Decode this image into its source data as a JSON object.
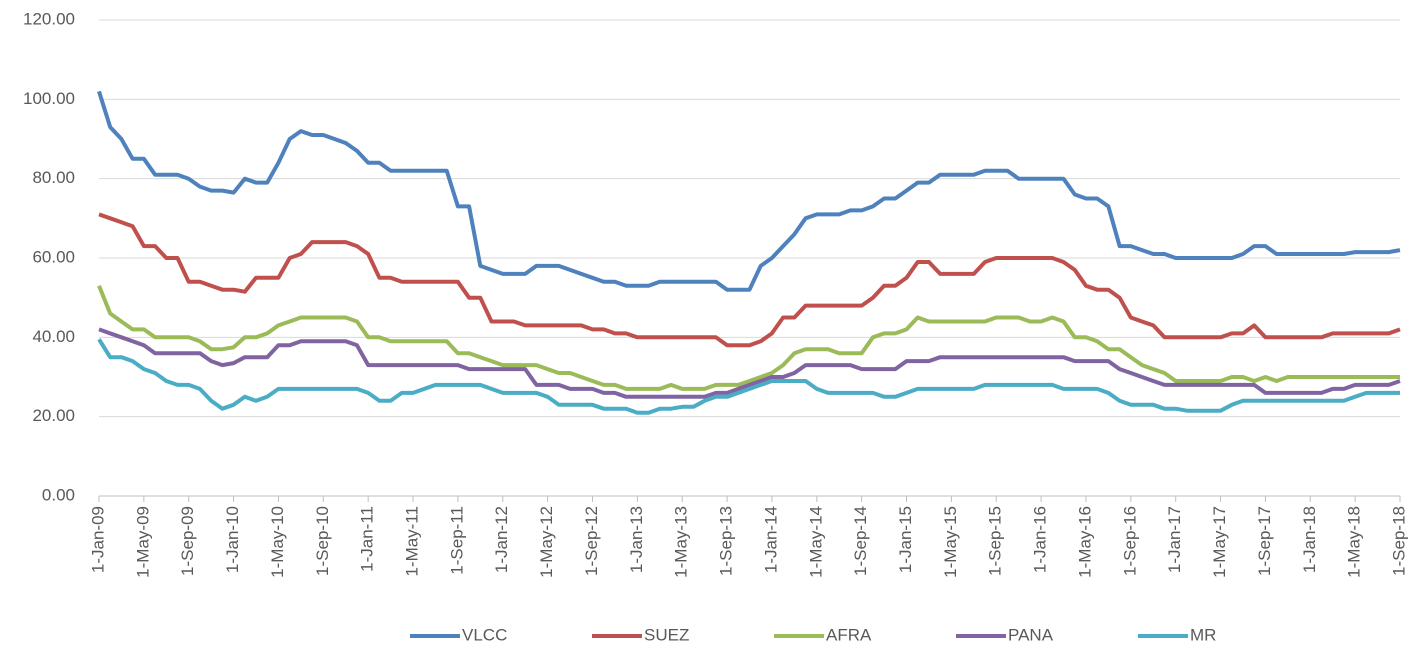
{
  "chart_data": {
    "type": "line",
    "x": [
      "1-Jan-09",
      "1-Feb-09",
      "1-Mar-09",
      "1-Apr-09",
      "1-May-09",
      "1-Jun-09",
      "1-Jul-09",
      "1-Aug-09",
      "1-Sep-09",
      "1-Oct-09",
      "1-Nov-09",
      "1-Dec-09",
      "1-Jan-10",
      "1-Feb-10",
      "1-Mar-10",
      "1-Apr-10",
      "1-May-10",
      "1-Jun-10",
      "1-Jul-10",
      "1-Aug-10",
      "1-Sep-10",
      "1-Oct-10",
      "1-Nov-10",
      "1-Dec-10",
      "1-Jan-11",
      "1-Feb-11",
      "1-Mar-11",
      "1-Apr-11",
      "1-May-11",
      "1-Jun-11",
      "1-Jul-11",
      "1-Aug-11",
      "1-Sep-11",
      "1-Oct-11",
      "1-Nov-11",
      "1-Dec-11",
      "1-Jan-12",
      "1-Feb-12",
      "1-Mar-12",
      "1-Apr-12",
      "1-May-12",
      "1-Jun-12",
      "1-Jul-12",
      "1-Aug-12",
      "1-Sep-12",
      "1-Oct-12",
      "1-Nov-12",
      "1-Dec-12",
      "1-Jan-13",
      "1-Feb-13",
      "1-Mar-13",
      "1-Apr-13",
      "1-May-13",
      "1-Jun-13",
      "1-Jul-13",
      "1-Aug-13",
      "1-Sep-13",
      "1-Oct-13",
      "1-Nov-13",
      "1-Dec-13",
      "1-Jan-14",
      "1-Feb-14",
      "1-Mar-14",
      "1-Apr-14",
      "1-May-14",
      "1-Jun-14",
      "1-Jul-14",
      "1-Aug-14",
      "1-Sep-14",
      "1-Oct-14",
      "1-Nov-14",
      "1-Dec-14",
      "1-Jan-15",
      "1-Feb-15",
      "1-Mar-15",
      "1-Apr-15",
      "1-May-15",
      "1-Jun-15",
      "1-Jul-15",
      "1-Aug-15",
      "1-Sep-15",
      "1-Oct-15",
      "1-Nov-15",
      "1-Dec-15",
      "1-Jan-16",
      "1-Feb-16",
      "1-Mar-16",
      "1-Apr-16",
      "1-May-16",
      "1-Jun-16",
      "1-Jul-16",
      "1-Aug-16",
      "1-Sep-16",
      "1-Oct-16",
      "1-Nov-16",
      "1-Dec-16",
      "1-Jan-17",
      "1-Feb-17",
      "1-Mar-17",
      "1-Apr-17",
      "1-May-17",
      "1-Jun-17",
      "1-Jul-17",
      "1-Aug-17",
      "1-Sep-17",
      "1-Oct-17",
      "1-Nov-17",
      "1-Dec-17",
      "1-Jan-18",
      "1-Feb-18",
      "1-Mar-18",
      "1-Apr-18",
      "1-May-18",
      "1-Jun-18",
      "1-Jul-18",
      "1-Aug-18",
      "1-Sep-18"
    ],
    "series": [
      {
        "name": "VLCC",
        "color": "#4f81bd",
        "values": [
          102,
          93,
          90,
          85,
          85,
          81,
          81,
          81,
          80,
          78,
          77,
          77,
          76.5,
          80,
          79,
          79,
          84,
          90,
          92,
          91,
          91,
          90,
          89,
          87,
          84,
          84,
          82,
          82,
          82,
          82,
          82,
          82,
          73,
          73,
          58,
          57,
          56,
          56,
          56,
          58,
          58,
          58,
          57,
          56,
          55,
          54,
          54,
          53,
          53,
          53,
          54,
          54,
          54,
          54,
          54,
          54,
          52,
          52,
          52,
          58,
          60,
          63,
          66,
          70,
          71,
          71,
          71,
          72,
          72,
          73,
          75,
          75,
          77,
          79,
          79,
          81,
          81,
          81,
          81,
          82,
          82,
          82,
          80,
          80,
          80,
          80,
          80,
          76,
          75,
          75,
          73,
          63,
          63,
          62,
          61,
          61,
          60,
          60,
          60,
          60,
          60,
          60,
          61,
          63,
          63,
          61,
          61,
          61,
          61,
          61,
          61,
          61,
          61.5,
          61.5,
          61.5,
          61.5,
          62
        ]
      },
      {
        "name": "SUEZ",
        "color": "#c0504d",
        "values": [
          71,
          70,
          69,
          68,
          63,
          63,
          60,
          60,
          54,
          54,
          53,
          52,
          52,
          51.5,
          55,
          55,
          55,
          60,
          61,
          64,
          64,
          64,
          64,
          63,
          61,
          55,
          55,
          54,
          54,
          54,
          54,
          54,
          54,
          50,
          50,
          44,
          44,
          44,
          43,
          43,
          43,
          43,
          43,
          43,
          42,
          42,
          41,
          41,
          40,
          40,
          40,
          40,
          40,
          40,
          40,
          40,
          38,
          38,
          38,
          39,
          41,
          45,
          45,
          48,
          48,
          48,
          48,
          48,
          48,
          50,
          53,
          53,
          55,
          59,
          59,
          56,
          56,
          56,
          56,
          59,
          60,
          60,
          60,
          60,
          60,
          60,
          59,
          57,
          53,
          52,
          52,
          50,
          45,
          44,
          43,
          40,
          40,
          40,
          40,
          40,
          40,
          41,
          41,
          43,
          40,
          40,
          40,
          40,
          40,
          40,
          41,
          41,
          41,
          41,
          41,
          41,
          42
        ]
      },
      {
        "name": "AFRA",
        "color": "#9bbb59",
        "values": [
          53,
          46,
          44,
          42,
          42,
          40,
          40,
          40,
          40,
          39,
          37,
          37,
          37.5,
          40,
          40,
          41,
          43,
          44,
          45,
          45,
          45,
          45,
          45,
          44,
          40,
          40,
          39,
          39,
          39,
          39,
          39,
          39,
          36,
          36,
          35,
          34,
          33,
          33,
          33,
          33,
          32,
          31,
          31,
          30,
          29,
          28,
          28,
          27,
          27,
          27,
          27,
          28,
          27,
          27,
          27,
          28,
          28,
          28,
          29,
          30,
          31,
          33,
          36,
          37,
          37,
          37,
          36,
          36,
          36,
          40,
          41,
          41,
          42,
          45,
          44,
          44,
          44,
          44,
          44,
          44,
          45,
          45,
          45,
          44,
          44,
          45,
          44,
          40,
          40,
          39,
          37,
          37,
          35,
          33,
          32,
          31,
          29,
          29,
          29,
          29,
          29,
          30,
          30,
          29,
          30,
          29,
          30,
          30,
          30,
          30,
          30,
          30,
          30,
          30,
          30,
          30,
          30
        ]
      },
      {
        "name": "PANA",
        "color": "#8064a2",
        "values": [
          42,
          41,
          40,
          39,
          38,
          36,
          36,
          36,
          36,
          36,
          34,
          33,
          33.5,
          35,
          35,
          35,
          38,
          38,
          39,
          39,
          39,
          39,
          39,
          38,
          33,
          33,
          33,
          33,
          33,
          33,
          33,
          33,
          33,
          32,
          32,
          32,
          32,
          32,
          32,
          28,
          28,
          28,
          27,
          27,
          27,
          26,
          26,
          25,
          25,
          25,
          25,
          25,
          25,
          25,
          25,
          26,
          26,
          27,
          28,
          29,
          30,
          30,
          31,
          33,
          33,
          33,
          33,
          33,
          32,
          32,
          32,
          32,
          34,
          34,
          34,
          35,
          35,
          35,
          35,
          35,
          35,
          35,
          35,
          35,
          35,
          35,
          35,
          34,
          34,
          34,
          34,
          32,
          31,
          30,
          29,
          28,
          28,
          28,
          28,
          28,
          28,
          28,
          28,
          28,
          26,
          26,
          26,
          26,
          26,
          26,
          27,
          27,
          28,
          28,
          28,
          28,
          29
        ]
      },
      {
        "name": "MR",
        "color": "#4bacc6",
        "values": [
          39.5,
          35,
          35,
          34,
          32,
          31,
          29,
          28,
          28,
          27,
          24,
          22,
          23,
          25,
          24,
          25,
          27,
          27,
          27,
          27,
          27,
          27,
          27,
          27,
          26,
          24,
          24,
          26,
          26,
          27,
          28,
          28,
          28,
          28,
          28,
          27,
          26,
          26,
          26,
          26,
          25,
          23,
          23,
          23,
          23,
          22,
          22,
          22,
          21,
          21,
          22,
          22,
          22.5,
          22.5,
          24,
          25,
          25,
          26,
          27,
          28,
          29,
          29,
          29,
          29,
          27,
          26,
          26,
          26,
          26,
          26,
          25,
          25,
          26,
          27,
          27,
          27,
          27,
          27,
          27,
          28,
          28,
          28,
          28,
          28,
          28,
          28,
          27,
          27,
          27,
          27,
          26,
          24,
          23,
          23,
          23,
          22,
          22,
          21.5,
          21.5,
          21.5,
          21.5,
          23,
          24,
          24,
          24,
          24,
          24,
          24,
          24,
          24,
          24,
          24,
          25,
          26,
          26,
          26,
          26
        ]
      }
    ],
    "ylim": [
      0,
      120
    ],
    "yticks": [
      {
        "value": 0,
        "label": "0.00"
      },
      {
        "value": 20,
        "label": "20.00"
      },
      {
        "value": 40,
        "label": "40.00"
      },
      {
        "value": 60,
        "label": "60.00"
      },
      {
        "value": 80,
        "label": "80.00"
      },
      {
        "value": 100,
        "label": "100.00"
      },
      {
        "value": 120,
        "label": "120.00"
      }
    ],
    "grid": true,
    "legend": "bottom"
  }
}
